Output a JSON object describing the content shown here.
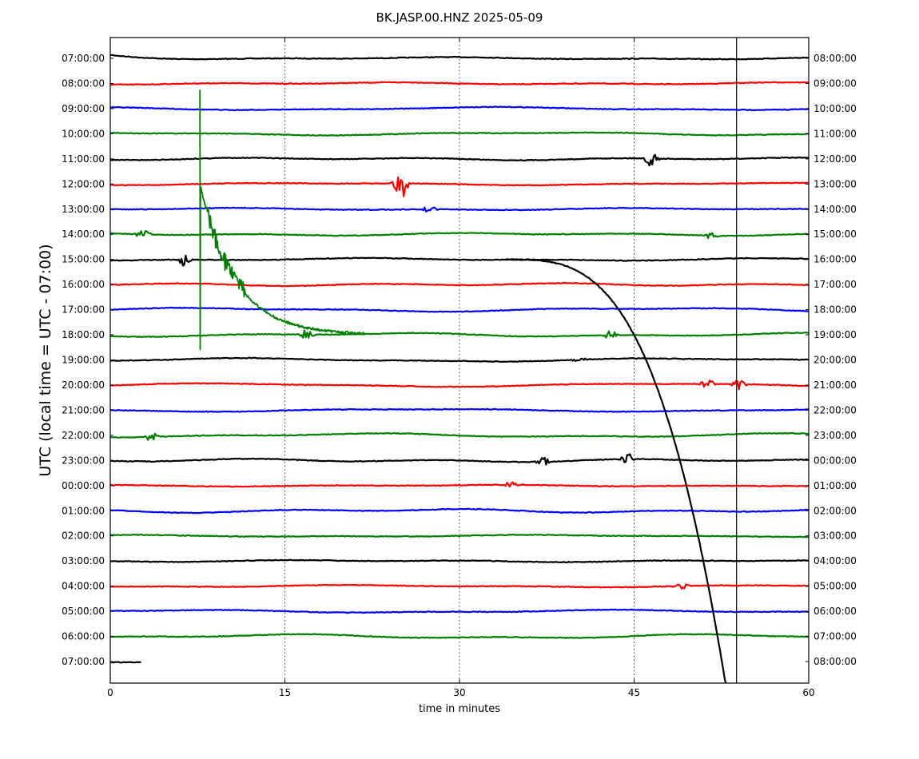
{
  "chart_data": {
    "type": "line",
    "title": "BK.JASP.00.HNZ 2025-05-09",
    "xlabel": "time in minutes",
    "ylabel": "UTC (local time = UTC - 07:00)",
    "xlim": [
      0,
      60
    ],
    "x_ticks": [
      "0",
      "15",
      "30",
      "45",
      "60"
    ],
    "x_tick_values": [
      0,
      15,
      30,
      45,
      60
    ],
    "grid": "vertical dotted at 15, 30, 45",
    "legend": "none",
    "vertical_marker_minute": 53.8,
    "colors_cycle": [
      "#000000",
      "#ff0000",
      "#0000ff",
      "#008000"
    ],
    "left_labels": [
      "07:00:00",
      "08:00:00",
      "09:00:00",
      "10:00:00",
      "11:00:00",
      "12:00:00",
      "13:00:00",
      "14:00:00",
      "15:00:00",
      "16:00:00",
      "17:00:00",
      "18:00:00",
      "19:00:00",
      "20:00:00",
      "21:00:00",
      "22:00:00",
      "23:00:00",
      "00:00:00",
      "01:00:00",
      "02:00:00",
      "03:00:00",
      "04:00:00",
      "05:00:00",
      "06:00:00",
      "07:00:00"
    ],
    "right_labels": [
      "08:00:00",
      "09:00:00",
      "10:00:00",
      "11:00:00",
      "12:00:00",
      "13:00:00",
      "14:00:00",
      "15:00:00",
      "16:00:00",
      "17:00:00",
      "18:00:00",
      "19:00:00",
      "20:00:00",
      "21:00:00",
      "22:00:00",
      "23:00:00",
      "00:00:00",
      "01:00:00",
      "02:00:00",
      "03:00:00",
      "04:00:00",
      "05:00:00",
      "06:00:00",
      "07:00:00",
      "08:00:00"
    ],
    "events": [
      {
        "row": 4,
        "minute": 46.5,
        "amp": 12
      },
      {
        "row": 5,
        "minute": 24.9,
        "amp": 35
      },
      {
        "row": 6,
        "minute": 27.5,
        "amp": 6
      },
      {
        "row": 7,
        "minute": 2.8,
        "amp": 8
      },
      {
        "row": 7,
        "minute": 51.7,
        "amp": 7
      },
      {
        "row": 8,
        "minute": 6.4,
        "amp": 11
      },
      {
        "row": 11,
        "minute": 16.9,
        "amp": 8
      },
      {
        "row": 11,
        "minute": 43.0,
        "amp": 6
      },
      {
        "row": 12,
        "minute": 40.2,
        "amp": 5
      },
      {
        "row": 13,
        "minute": 51.3,
        "amp": 8
      },
      {
        "row": 13,
        "minute": 54.0,
        "amp": 7
      },
      {
        "row": 15,
        "minute": 3.5,
        "amp": 7
      },
      {
        "row": 16,
        "minute": 37.2,
        "amp": 6
      },
      {
        "row": 16,
        "minute": 44.5,
        "amp": 8
      },
      {
        "row": 17,
        "minute": 34.4,
        "amp": 5
      },
      {
        "row": 21,
        "minute": 49.0,
        "amp": 5
      }
    ]
  }
}
